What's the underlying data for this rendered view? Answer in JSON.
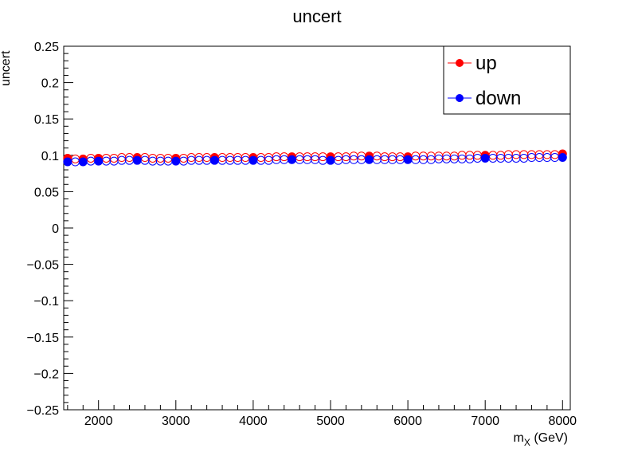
{
  "chart_data": {
    "type": "scatter",
    "title": "uncert",
    "ylabel": "uncert",
    "xlabel_main": "m",
    "xlabel_sub": "X",
    "xlabel_unit": " (GeV)",
    "xlim": [
      1550,
      8100
    ],
    "ylim": [
      -0.25,
      0.25
    ],
    "x_ticks": [
      2000,
      3000,
      4000,
      5000,
      6000,
      7000,
      8000
    ],
    "x_tick_labels": [
      "2000",
      "3000",
      "4000",
      "5000",
      "6000",
      "7000",
      "8000"
    ],
    "y_ticks": [
      -0.25,
      -0.2,
      -0.15,
      -0.1,
      -0.05,
      0,
      0.05,
      0.1,
      0.15,
      0.2,
      0.25
    ],
    "y_tick_labels": [
      "−0.25",
      "−0.2",
      "−0.15",
      "−0.1",
      "−0.05",
      "0",
      "0.05",
      "0.1",
      "0.15",
      "0.2",
      "0.25"
    ],
    "legend_position": "top-right",
    "grid": false,
    "series": [
      {
        "name": "up",
        "color": "#ff0000",
        "filled": {
          "x": [
            1600,
            1800,
            2000,
            2500,
            3000,
            3500,
            4000,
            4500,
            5000,
            5500,
            6000,
            7000,
            8000
          ],
          "y": [
            0.096,
            0.095,
            0.096,
            0.097,
            0.096,
            0.097,
            0.097,
            0.098,
            0.098,
            0.099,
            0.098,
            0.1,
            0.102
          ]
        },
        "open": {
          "x": [
            1700,
            1900,
            2100,
            2200,
            2300,
            2400,
            2600,
            2700,
            2800,
            2900,
            3100,
            3200,
            3300,
            3400,
            3600,
            3700,
            3800,
            3900,
            4100,
            4200,
            4300,
            4400,
            4600,
            4700,
            4800,
            4900,
            5100,
            5200,
            5300,
            5400,
            5600,
            5700,
            5800,
            5900,
            6100,
            6200,
            6300,
            6400,
            6500,
            6600,
            6700,
            6800,
            6900,
            7100,
            7200,
            7300,
            7400,
            7500,
            7600,
            7700,
            7800,
            7900
          ],
          "y": [
            0.095,
            0.096,
            0.096,
            0.096,
            0.097,
            0.097,
            0.097,
            0.096,
            0.096,
            0.096,
            0.096,
            0.097,
            0.097,
            0.097,
            0.097,
            0.097,
            0.097,
            0.097,
            0.097,
            0.097,
            0.098,
            0.098,
            0.098,
            0.098,
            0.098,
            0.098,
            0.098,
            0.098,
            0.099,
            0.099,
            0.099,
            0.098,
            0.098,
            0.098,
            0.099,
            0.099,
            0.099,
            0.099,
            0.099,
            0.099,
            0.1,
            0.1,
            0.1,
            0.1,
            0.1,
            0.101,
            0.101,
            0.101,
            0.101,
            0.101,
            0.101,
            0.101
          ]
        }
      },
      {
        "name": "down",
        "color": "#0000ff",
        "filled": {
          "x": [
            1600,
            1800,
            2000,
            2500,
            3000,
            3500,
            4000,
            4500,
            5000,
            5500,
            6000,
            7000,
            8000
          ],
          "y": [
            0.091,
            0.091,
            0.092,
            0.093,
            0.092,
            0.093,
            0.093,
            0.094,
            0.093,
            0.094,
            0.094,
            0.096,
            0.097
          ]
        },
        "open": {
          "x": [
            1700,
            1900,
            2100,
            2200,
            2300,
            2400,
            2600,
            2700,
            2800,
            2900,
            3100,
            3200,
            3300,
            3400,
            3600,
            3700,
            3800,
            3900,
            4100,
            4200,
            4300,
            4400,
            4600,
            4700,
            4800,
            4900,
            5100,
            5200,
            5300,
            5400,
            5600,
            5700,
            5800,
            5900,
            6100,
            6200,
            6300,
            6400,
            6500,
            6600,
            6700,
            6800,
            6900,
            7100,
            7200,
            7300,
            7400,
            7500,
            7600,
            7700,
            7800,
            7900
          ],
          "y": [
            0.091,
            0.092,
            0.092,
            0.092,
            0.093,
            0.093,
            0.093,
            0.092,
            0.092,
            0.092,
            0.092,
            0.093,
            0.093,
            0.093,
            0.093,
            0.093,
            0.093,
            0.093,
            0.093,
            0.093,
            0.094,
            0.094,
            0.094,
            0.094,
            0.094,
            0.093,
            0.093,
            0.094,
            0.094,
            0.094,
            0.094,
            0.094,
            0.094,
            0.094,
            0.094,
            0.094,
            0.094,
            0.095,
            0.095,
            0.095,
            0.095,
            0.095,
            0.096,
            0.096,
            0.096,
            0.096,
            0.096,
            0.096,
            0.097,
            0.097,
            0.097,
            0.097
          ]
        }
      }
    ]
  }
}
